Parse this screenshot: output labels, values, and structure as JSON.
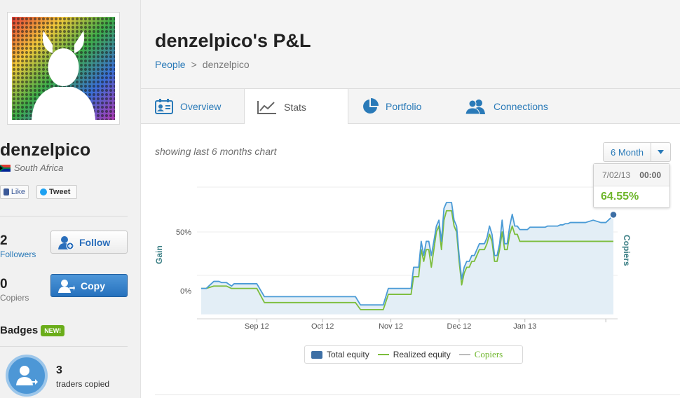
{
  "profile": {
    "username": "denzelpico",
    "country": "South Africa",
    "like_label": "Like",
    "tweet_label": "Tweet",
    "followers_count": "2",
    "followers_label": "Followers",
    "follow_button": "Follow",
    "copiers_count": "0",
    "copiers_label": "Copiers",
    "copy_button": "Copy",
    "badges_title": "Badges",
    "badges_new_tag": "NEW!",
    "traders_count": "3",
    "traders_label": "traders copied"
  },
  "header": {
    "title": "denzelpico's P&L",
    "breadcrumb": [
      "People",
      ">",
      "denzelpico"
    ]
  },
  "tabs": [
    {
      "label": "Overview",
      "icon": "profile-card-icon",
      "active": false
    },
    {
      "label": "Stats",
      "icon": "line-chart-icon",
      "active": true
    },
    {
      "label": "Portfolio",
      "icon": "pie-chart-icon",
      "active": false
    },
    {
      "label": "Connections",
      "icon": "people-icon",
      "active": false
    }
  ],
  "stats": {
    "showing_text": "showing last 6 months chart",
    "range_selected": "6 Month",
    "tooltip": {
      "date": "7/02/13",
      "time": "00:00",
      "value": "64.55%"
    }
  },
  "colors": {
    "total_equity": "#4a9bd6",
    "total_fill": "#e3eef6",
    "realized_equity": "#7cbd3c",
    "copiers": "#bbbbbb",
    "accent_link": "#2a7ab8",
    "axis_label": "#3a7e84"
  },
  "chart_data": {
    "type": "line",
    "ylabel": "Gain",
    "y2label": "Copiers",
    "yticks": [
      "50%",
      "0%"
    ],
    "ylim": [
      -20,
      90
    ],
    "xlim": [
      0,
      163
    ],
    "categories": [
      "Sep 12",
      "Oct 12",
      "Nov 12",
      "Dec 12",
      "Jan 13"
    ],
    "category_positions": [
      22,
      48,
      75,
      102,
      128
    ],
    "series": [
      {
        "name": "Total equity",
        "x": [
          0,
          2,
          5,
          7,
          8,
          10,
          12,
          13,
          15,
          17,
          20,
          22,
          25,
          30,
          35,
          40,
          45,
          50,
          51,
          53,
          55,
          58,
          60,
          61,
          63,
          65,
          68,
          70,
          72,
          74,
          75,
          76,
          77,
          78,
          79,
          80,
          81,
          82,
          83,
          84,
          85,
          86,
          87,
          88,
          89,
          90,
          91,
          92,
          93,
          94,
          95,
          96,
          97,
          98,
          99,
          100,
          101,
          102,
          103,
          104,
          105,
          106,
          107,
          108,
          109,
          110,
          111,
          112,
          113,
          114,
          115,
          116,
          117,
          118,
          119,
          120,
          121,
          122,
          123,
          124,
          125,
          126,
          127,
          128,
          129,
          130,
          131,
          132,
          133,
          134,
          135,
          136,
          137,
          138,
          139,
          140,
          141,
          142,
          143,
          144,
          145,
          146,
          147,
          148,
          150,
          152,
          155,
          158,
          160,
          162,
          163
        ],
        "values": [
          2,
          2,
          8,
          8,
          7,
          7,
          4,
          6,
          6,
          6,
          6,
          6,
          -5,
          -5,
          -5,
          -5,
          -5,
          -5,
          -5,
          -5,
          -5,
          -5,
          -5,
          -5,
          -12,
          -12,
          -12,
          -12,
          -12,
          2,
          2,
          2,
          2,
          2,
          2,
          2,
          2,
          2,
          2,
          20,
          20,
          20,
          42,
          30,
          42,
          42,
          30,
          42,
          55,
          60,
          42,
          70,
          75,
          75,
          75,
          60,
          55,
          30,
          10,
          20,
          25,
          25,
          30,
          30,
          35,
          40,
          40,
          40,
          45,
          55,
          48,
          30,
          30,
          40,
          60,
          40,
          40,
          55,
          65,
          55,
          55,
          52,
          52,
          52,
          52,
          54,
          54,
          54,
          54,
          54,
          54,
          54,
          55,
          55,
          55,
          55,
          55,
          56,
          56,
          57,
          57,
          58,
          58,
          58,
          58,
          58,
          60,
          58,
          58,
          62,
          64.55
        ]
      },
      {
        "name": "Realized equity",
        "x": [
          0,
          2,
          5,
          7,
          8,
          10,
          12,
          13,
          15,
          17,
          20,
          22,
          25,
          30,
          35,
          40,
          45,
          50,
          51,
          53,
          55,
          58,
          60,
          61,
          63,
          65,
          68,
          70,
          72,
          74,
          75,
          76,
          77,
          78,
          79,
          80,
          81,
          82,
          83,
          84,
          85,
          86,
          87,
          88,
          89,
          90,
          91,
          92,
          93,
          94,
          95,
          96,
          97,
          98,
          99,
          100,
          101,
          102,
          103,
          104,
          105,
          106,
          107,
          108,
          109,
          110,
          111,
          112,
          113,
          114,
          115,
          116,
          117,
          118,
          119,
          120,
          121,
          122,
          123,
          124,
          125,
          126,
          127,
          128,
          129,
          130,
          131,
          132,
          133,
          134,
          135,
          136,
          137,
          138,
          139,
          140,
          141,
          142,
          143,
          144,
          145,
          146,
          147,
          148,
          150,
          152,
          155,
          158,
          160,
          162,
          163
        ],
        "values": [
          2,
          2,
          4,
          4,
          4,
          4,
          2,
          2,
          2,
          2,
          2,
          2,
          -10,
          -10,
          -10,
          -10,
          -10,
          -10,
          -10,
          -10,
          -10,
          -10,
          -10,
          -10,
          -16,
          -16,
          -16,
          -16,
          -16,
          -3,
          -3,
          -3,
          -3,
          -3,
          -3,
          -3,
          -3,
          -3,
          -3,
          12,
          12,
          12,
          35,
          25,
          35,
          35,
          20,
          35,
          50,
          55,
          35,
          60,
          68,
          68,
          68,
          55,
          50,
          25,
          5,
          15,
          20,
          20,
          25,
          25,
          30,
          35,
          35,
          35,
          40,
          48,
          42,
          25,
          25,
          35,
          50,
          35,
          35,
          48,
          55,
          48,
          48,
          42,
          42,
          42,
          42,
          42,
          42,
          42,
          42,
          42,
          42,
          42,
          42,
          42,
          42,
          42,
          42,
          42,
          42,
          42,
          42,
          42,
          42,
          42,
          42,
          42,
          42,
          42,
          42,
          42,
          42
        ]
      },
      {
        "name": "Copiers",
        "x": [],
        "values": []
      }
    ]
  }
}
